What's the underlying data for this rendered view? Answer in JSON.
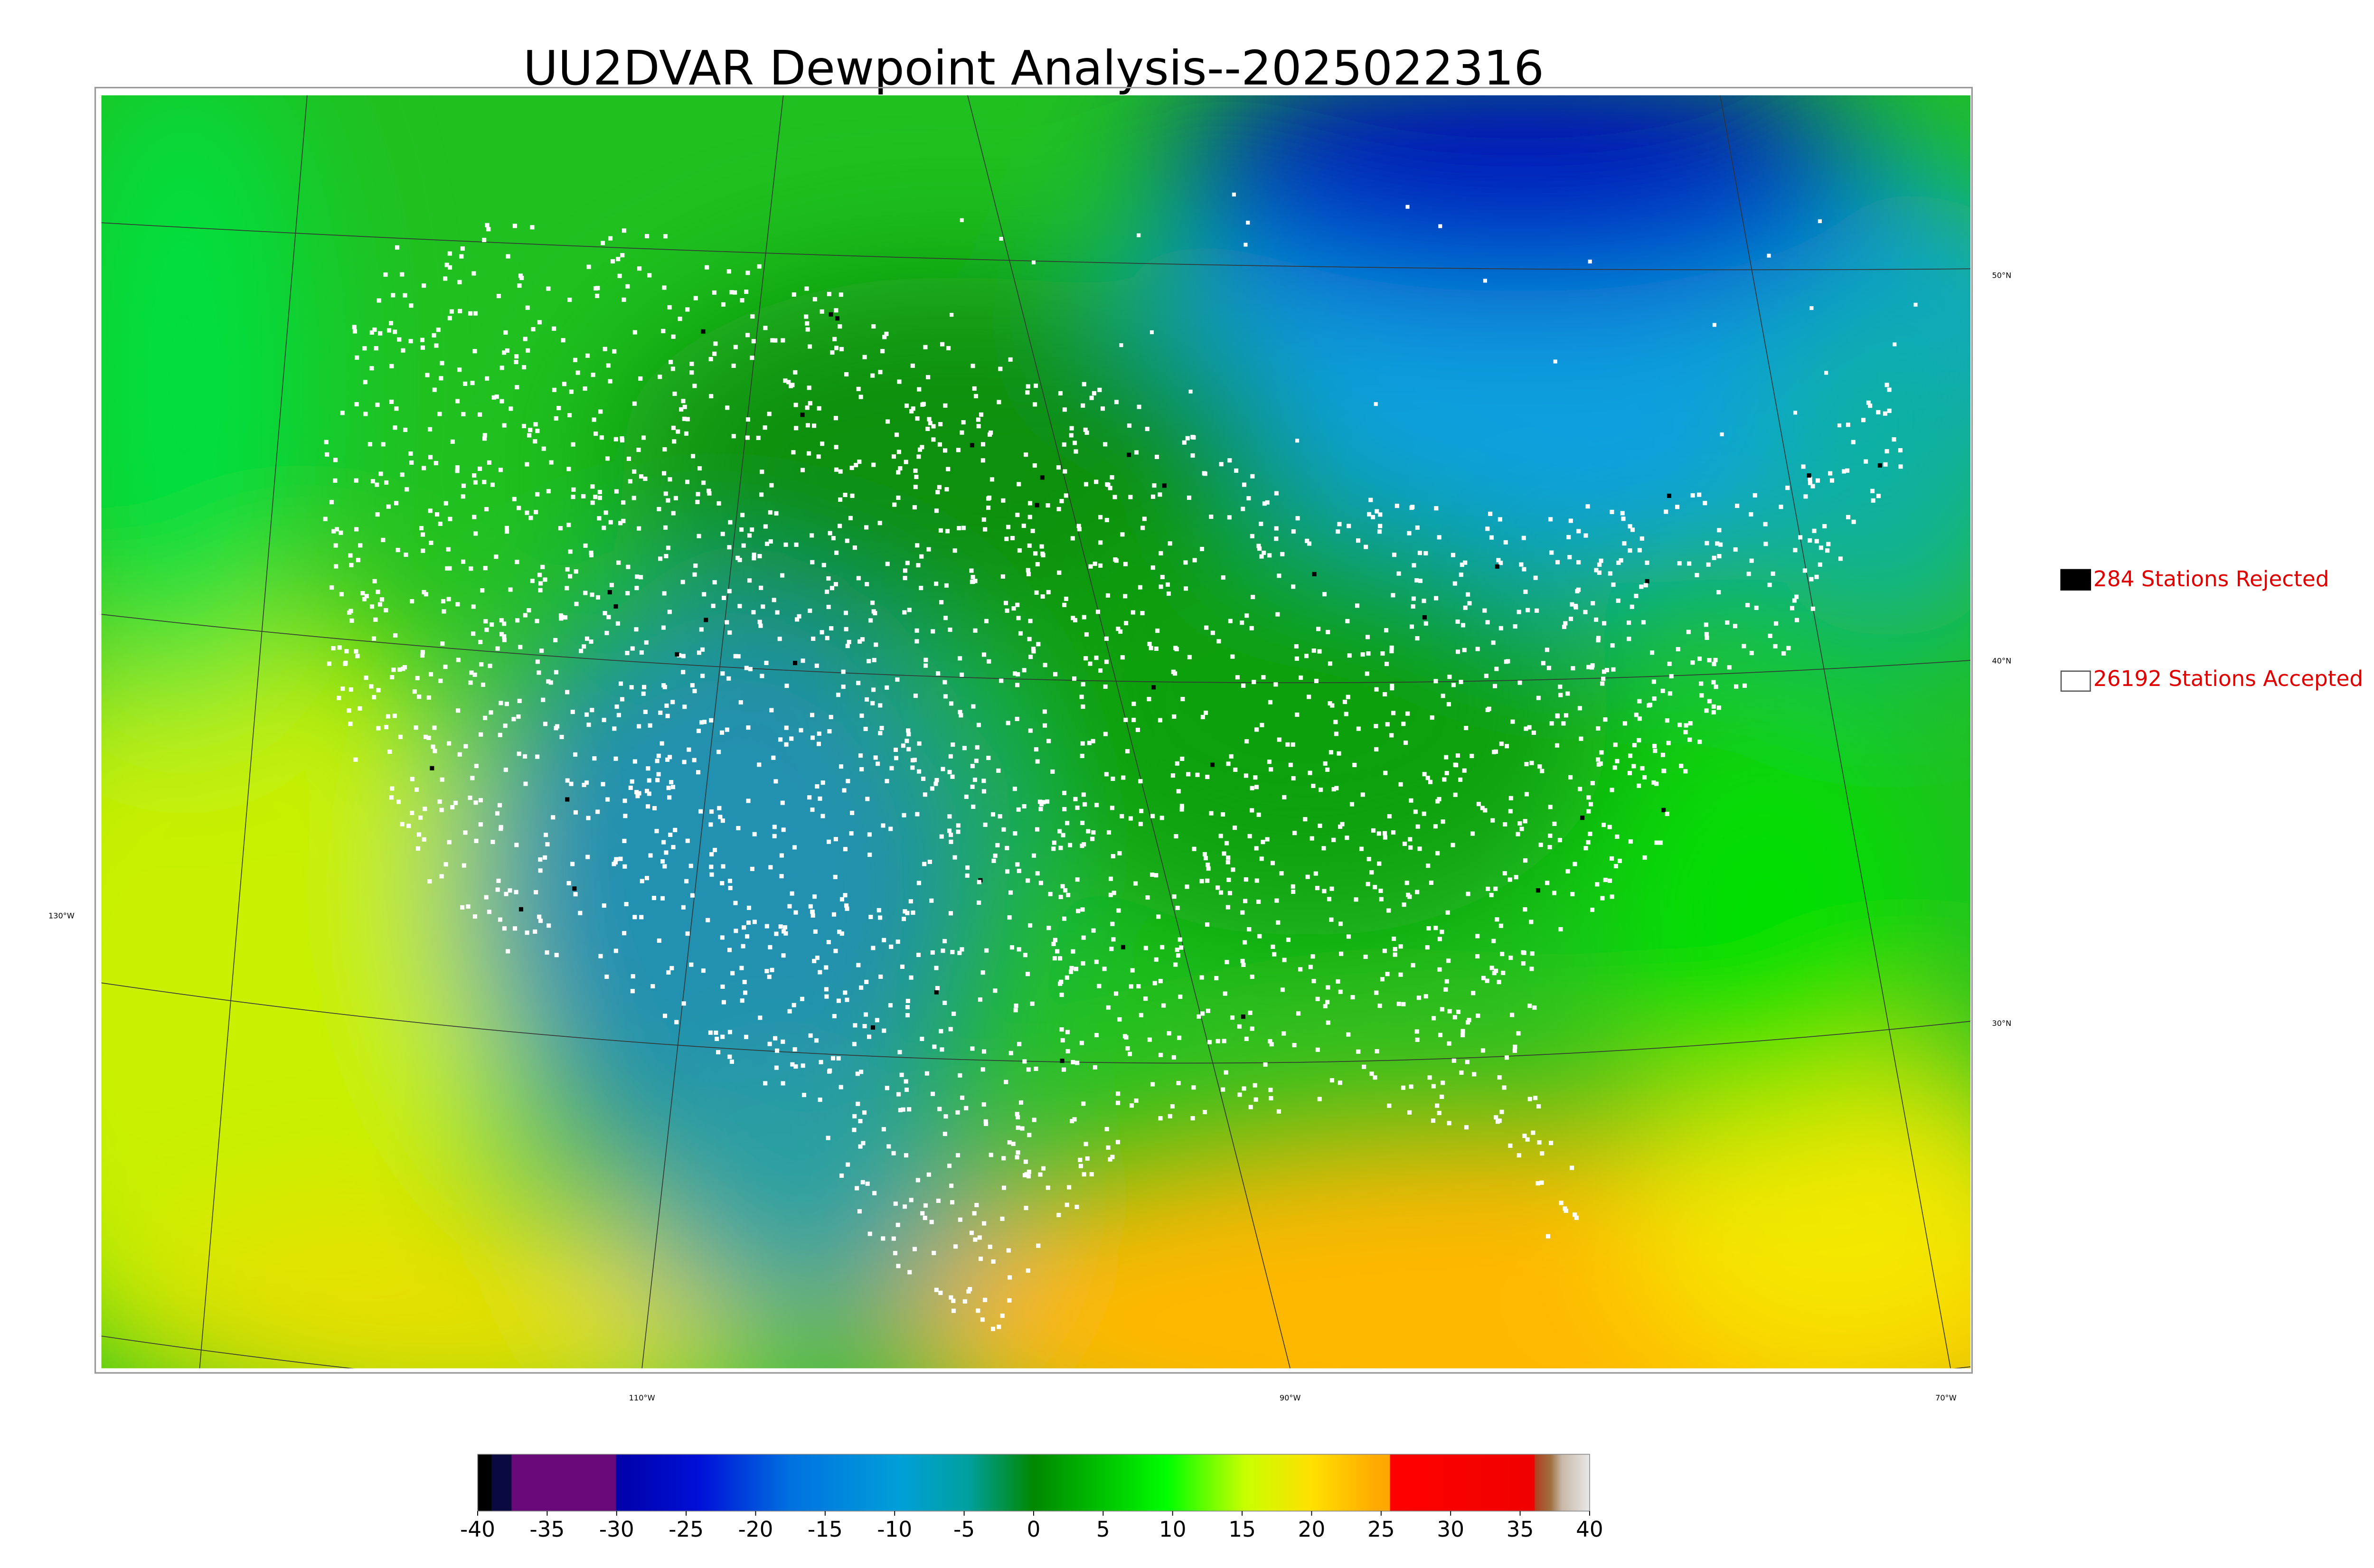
{
  "title": "UU2DVAR Dewpoint Analysis--2025022316",
  "legend": [
    {
      "label": "284 Stations Rejected"
    },
    {
      "label": "26192 Stations Accepted"
    }
  ],
  "graticule_labels": [
    "50°N",
    "40°N",
    "30°N",
    "130°W",
    "110°W",
    "90°W",
    "70°W"
  ],
  "colorbar": {
    "range": [
      -40,
      40
    ],
    "ticks": [
      -40,
      -35,
      -30,
      -25,
      -20,
      -15,
      -10,
      -5,
      0,
      5,
      10,
      15,
      20,
      25,
      30,
      35,
      40
    ]
  }
}
